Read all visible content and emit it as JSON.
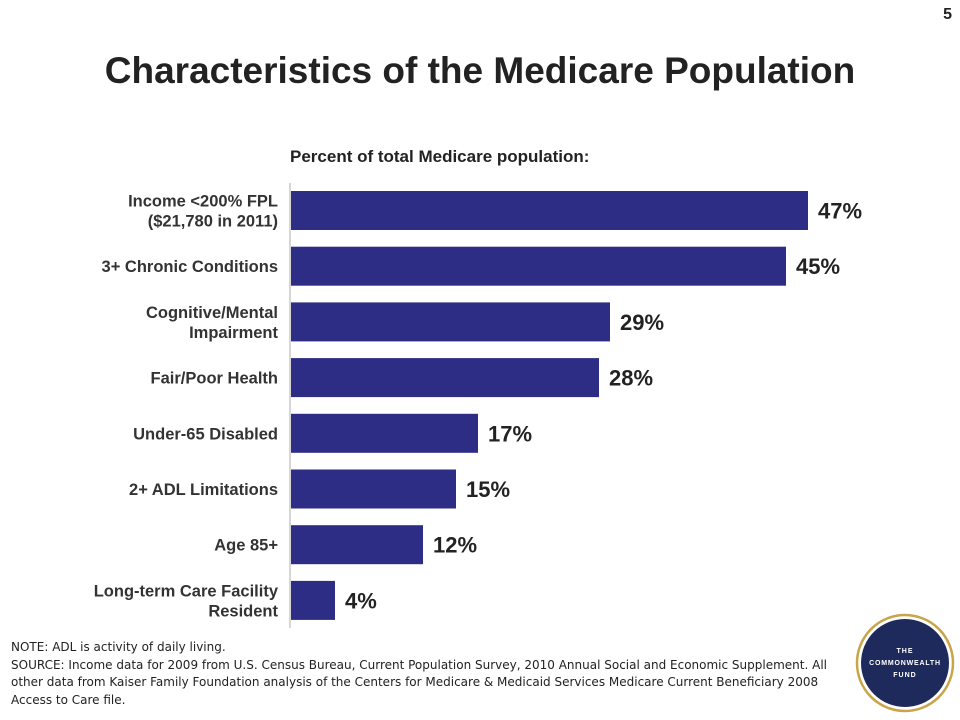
{
  "page_number": "5",
  "title": "Characteristics of the Medicare Population",
  "chart_data": {
    "type": "bar",
    "orientation": "horizontal",
    "title": "Percent of total Medicare population:",
    "categories": [
      [
        "Income <200% FPL",
        "($21,780 in 2011)"
      ],
      [
        "3+ Chronic Conditions"
      ],
      [
        "Cognitive/Mental",
        "Impairment"
      ],
      [
        "Fair/Poor Health"
      ],
      [
        "Under-65 Disabled"
      ],
      [
        "2+ ADL Limitations"
      ],
      [
        "Age 85+"
      ],
      [
        "Long-term Care Facility",
        "Resident"
      ]
    ],
    "values": [
      47,
      45,
      29,
      28,
      17,
      15,
      12,
      4
    ],
    "value_labels": [
      "47%",
      "45%",
      "29%",
      "28%",
      "17%",
      "15%",
      "12%",
      "4%"
    ],
    "bar_color": "#2e2d86",
    "grid": false
  },
  "notes": {
    "line1": "NOTE: ADL is activity of daily living.",
    "line2": "SOURCE: Income data for 2009 from U.S. Census Bureau, Current Population Survey, 2010 Annual Social and Economic Supplement.  All other data from Kaiser Family Foundation analysis of the Centers for Medicare & Medicaid Services Medicare Current Beneficiary 2008 Access to Care file."
  },
  "logo": {
    "line1": "THE",
    "line2": "COMMONWEALTH",
    "line3": "FUND",
    "ring_color": "#c9a54a",
    "fill_color": "#1f2a5c"
  }
}
